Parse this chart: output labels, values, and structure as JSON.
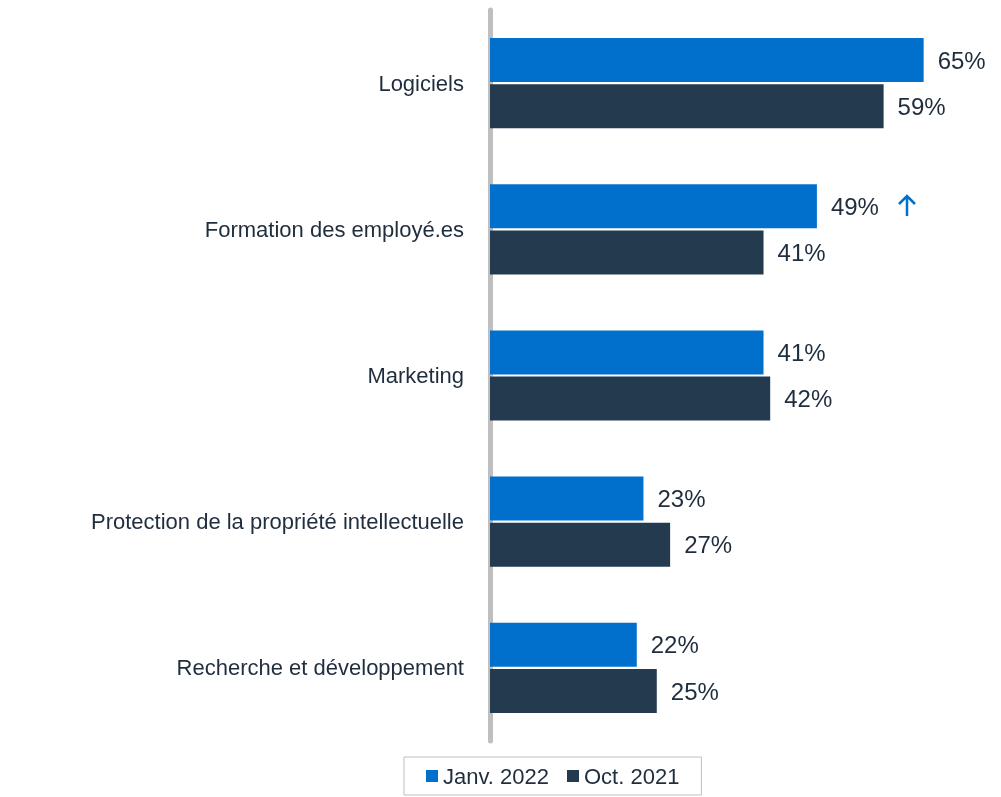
{
  "chart_data": {
    "type": "bar",
    "orientation": "horizontal",
    "categories": [
      "Logiciels",
      "Formation des employé.es",
      "Marketing",
      "Protection de la propriété intellectuelle",
      "Recherche et développement"
    ],
    "series": [
      {
        "name": "Janv. 2022",
        "color": "#0070cc",
        "values": [
          65,
          49,
          41,
          23,
          22
        ],
        "value_labels": [
          "65%",
          "49%",
          "41%",
          "23%",
          "22%"
        ]
      },
      {
        "name": "Oct. 2021",
        "color": "#243a4f",
        "values": [
          59,
          41,
          42,
          27,
          25
        ],
        "value_labels": [
          "59%",
          "41%",
          "42%",
          "27%",
          "25%"
        ]
      }
    ],
    "legend": "bottom"
  }
}
